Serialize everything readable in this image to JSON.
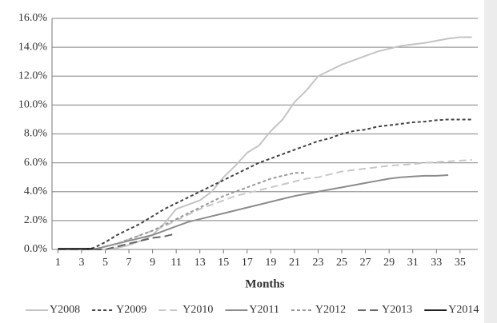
{
  "chart_data": {
    "type": "line",
    "x_label": "Months",
    "x": [
      1,
      2,
      3,
      4,
      5,
      6,
      7,
      8,
      9,
      10,
      11,
      12,
      13,
      14,
      15,
      16,
      17,
      18,
      19,
      20,
      21,
      22,
      23,
      24,
      25,
      26,
      27,
      28,
      29,
      30,
      31,
      32,
      33,
      34,
      35,
      36
    ],
    "xlim": [
      0.5,
      36.5
    ],
    "xticks": [
      1,
      3,
      5,
      7,
      9,
      11,
      13,
      15,
      17,
      19,
      21,
      23,
      25,
      27,
      29,
      31,
      33,
      35
    ],
    "ylim": [
      0,
      16
    ],
    "yticks": [
      {
        "value": 0,
        "label": "0.0%"
      },
      {
        "value": 2,
        "label": "2.0%"
      },
      {
        "value": 4,
        "label": "4.0%"
      },
      {
        "value": 6,
        "label": "6.0%"
      },
      {
        "value": 8,
        "label": "8.0%"
      },
      {
        "value": 10,
        "label": "10.0%"
      },
      {
        "value": 12,
        "label": "12.0%"
      },
      {
        "value": 14,
        "label": "14.0%"
      },
      {
        "value": 16,
        "label": "16.0%"
      }
    ],
    "grid": true,
    "legend": "bottom",
    "series": [
      {
        "name": "Y2008",
        "color": "#c4c4c4",
        "dash": "none",
        "values": [
          0,
          0,
          0,
          0,
          0,
          0.1,
          0.3,
          0.6,
          1.0,
          1.8,
          2.8,
          3.1,
          3.4,
          4.0,
          5.0,
          5.8,
          6.7,
          7.2,
          8.2,
          9.0,
          10.2,
          11.0,
          12.0,
          12.4,
          12.8,
          13.1,
          13.4,
          13.7,
          13.9,
          14.1,
          14.2,
          14.3,
          14.45,
          14.6,
          14.7,
          14.7
        ]
      },
      {
        "name": "Y2009",
        "color": "#444444",
        "dash": "4,3",
        "values": [
          0,
          0,
          0,
          0.1,
          0.5,
          1.0,
          1.4,
          1.8,
          2.3,
          2.8,
          3.2,
          3.6,
          4.0,
          4.4,
          4.8,
          5.2,
          5.6,
          6.0,
          6.3,
          6.6,
          6.9,
          7.2,
          7.5,
          7.7,
          8.0,
          8.2,
          8.3,
          8.5,
          8.6,
          8.7,
          8.8,
          8.85,
          8.95,
          9.0,
          9.0,
          9.0
        ]
      },
      {
        "name": "Y2010",
        "color": "#c8c8c8",
        "dash": "9,5",
        "values": [
          0,
          0,
          0,
          0,
          0.2,
          0.4,
          0.7,
          1.0,
          1.3,
          1.6,
          2.0,
          2.4,
          2.8,
          3.1,
          3.4,
          3.7,
          3.9,
          4.1,
          4.3,
          4.5,
          4.7,
          4.9,
          5.0,
          5.2,
          5.4,
          5.5,
          5.6,
          5.7,
          5.8,
          5.85,
          5.9,
          6.0,
          6.05,
          6.1,
          6.15,
          6.2
        ]
      },
      {
        "name": "Y2011",
        "color": "#8c8c8c",
        "dash": "none",
        "values": [
          0,
          0,
          0,
          0,
          0.2,
          0.4,
          0.6,
          0.8,
          1.0,
          1.3,
          1.6,
          1.9,
          2.1,
          2.3,
          2.5,
          2.7,
          2.9,
          3.1,
          3.3,
          3.5,
          3.7,
          3.85,
          4.0,
          4.15,
          4.3,
          4.45,
          4.6,
          4.75,
          4.9,
          5.0,
          5.05,
          5.1,
          5.1,
          5.15,
          null,
          null
        ]
      },
      {
        "name": "Y2012",
        "color": "#999999",
        "dash": "4,3",
        "values": [
          0,
          0,
          0,
          0,
          0.2,
          0.4,
          0.7,
          1.0,
          1.3,
          1.7,
          2.1,
          2.5,
          2.9,
          3.3,
          3.7,
          4.0,
          4.3,
          4.6,
          4.9,
          5.1,
          5.3,
          5.3,
          null,
          null,
          null,
          null,
          null,
          null,
          null,
          null,
          null,
          null,
          null,
          null,
          null,
          null
        ]
      },
      {
        "name": "Y2013",
        "color": "#666666",
        "dash": "10,5",
        "values": [
          0,
          0,
          0,
          0,
          0,
          0.2,
          0.4,
          0.6,
          0.8,
          0.9,
          1.1,
          null,
          null,
          null,
          null,
          null,
          null,
          null,
          null,
          null,
          null,
          null,
          null,
          null,
          null,
          null,
          null,
          null,
          null,
          null,
          null,
          null,
          null,
          null,
          null,
          null
        ]
      },
      {
        "name": "Y2014",
        "color": "#222222",
        "dash": "none",
        "values": [
          0.05,
          0.05,
          0.05,
          0.05,
          null,
          null,
          null,
          null,
          null,
          null,
          null,
          null,
          null,
          null,
          null,
          null,
          null,
          null,
          null,
          null,
          null,
          null,
          null,
          null,
          null,
          null,
          null,
          null,
          null,
          null,
          null,
          null,
          null,
          null,
          null,
          null
        ]
      }
    ]
  }
}
